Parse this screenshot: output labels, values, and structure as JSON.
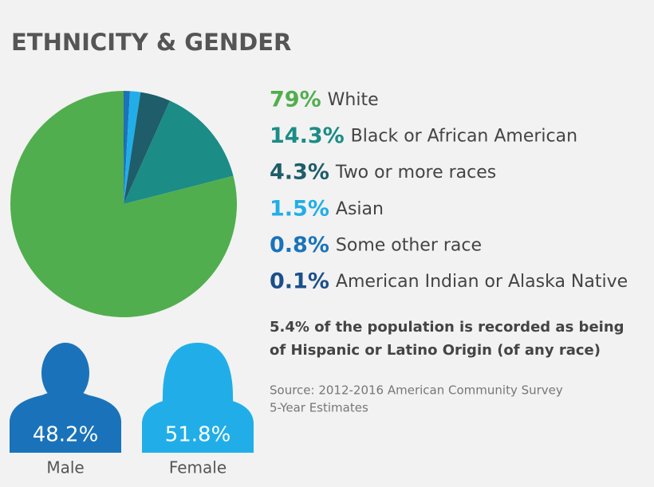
{
  "chart_data": [
    {
      "type": "pie",
      "title": "ETHNICITY & GENDER",
      "categories": [
        "White",
        "Black or African American",
        "Two or more races",
        "Asian",
        "Some other race",
        "American Indian or Alaska Native"
      ],
      "values": [
        79,
        14.3,
        4.3,
        1.5,
        0.8,
        0.1
      ],
      "value_labels": [
        "79%",
        "14.3%",
        "4.3%",
        "1.5%",
        "0.8%",
        "0.1%"
      ],
      "colors": [
        "#51ae4e",
        "#1b8c86",
        "#1e5d69",
        "#21aee8",
        "#1a73ba",
        "#1b4f8b"
      ],
      "note": [
        "5.4% of the population is recorded as being",
        "of Hispanic or Latino Origin (of any race)"
      ],
      "source": [
        "Source: 2012-2016 American Community Survey",
        "5-Year Estimates"
      ]
    },
    {
      "type": "icon",
      "categories": [
        "Male",
        "Female"
      ],
      "values": [
        48.2,
        51.8
      ],
      "value_labels": [
        "48.2%",
        "51.8%"
      ],
      "colors": [
        "#1a73ba",
        "#21aee8"
      ]
    }
  ]
}
